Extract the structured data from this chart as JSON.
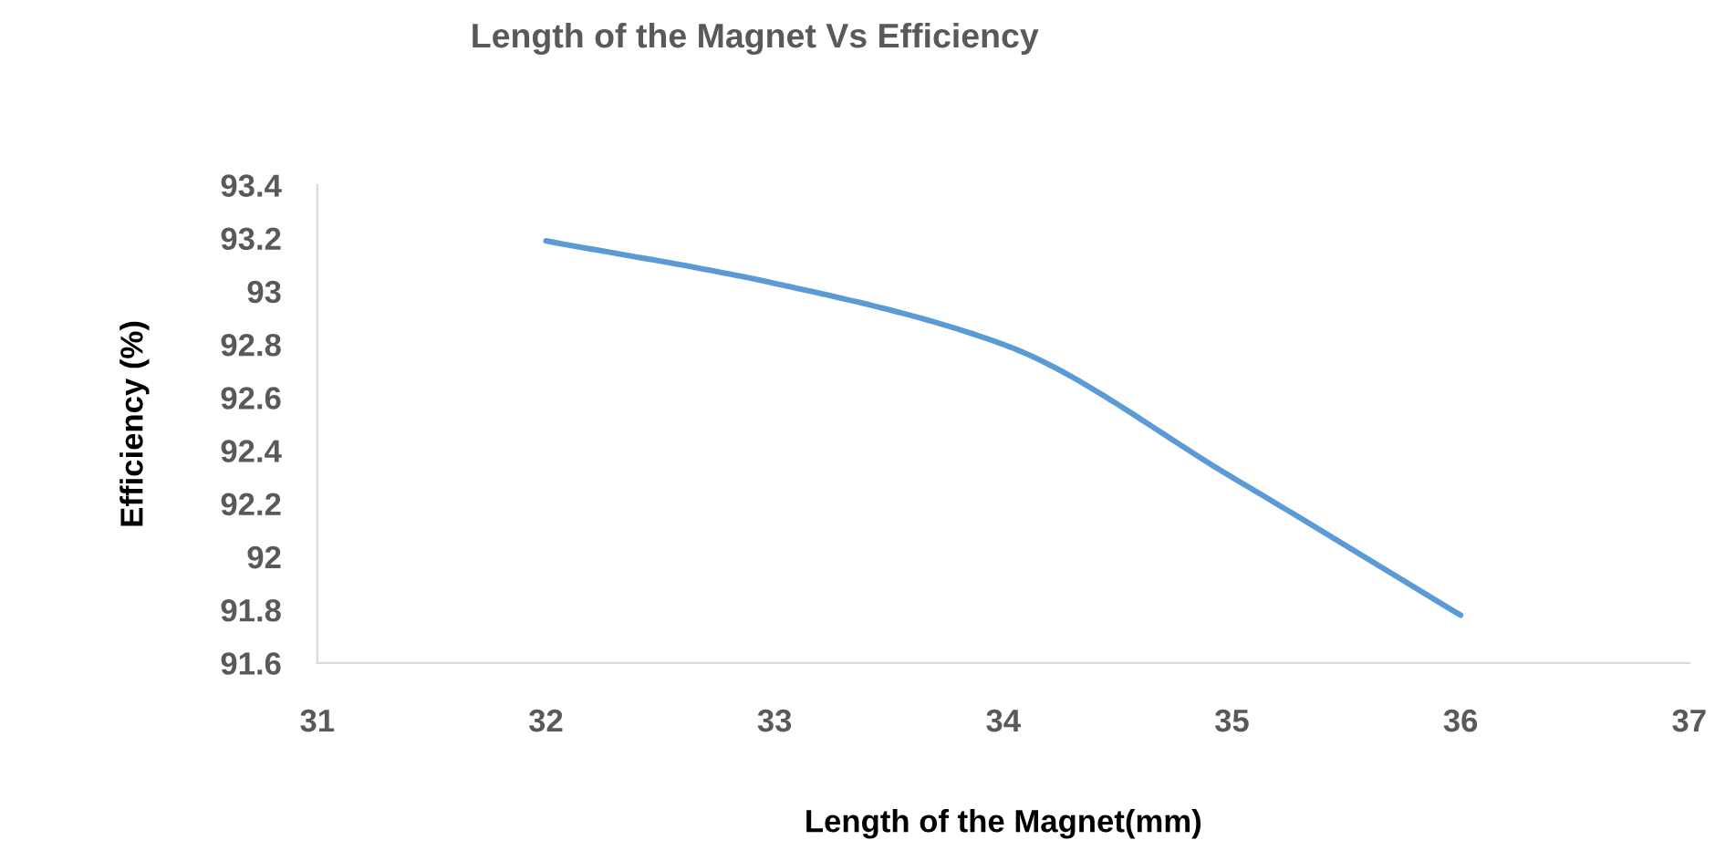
{
  "chart_data": {
    "type": "line",
    "title": "Length of the Magnet Vs Efficiency",
    "xlabel": "Length of the Magnet(mm)",
    "ylabel": "Efficiency (%)",
    "x": [
      32,
      33,
      34,
      35,
      36
    ],
    "series": [
      {
        "color": "#5b9bd5",
        "values": [
          93.19,
          93.03,
          92.8,
          92.3,
          91.78
        ]
      }
    ],
    "xlim": [
      31,
      37
    ],
    "xticks": [
      31,
      32,
      33,
      34,
      35,
      36,
      37
    ],
    "ylim": [
      91.6,
      93.4
    ],
    "yticks": [
      91.6,
      91.8,
      92,
      92.2,
      92.4,
      92.6,
      92.8,
      93,
      93.2,
      93.4
    ],
    "grid": false,
    "legend": false,
    "marker": "none",
    "line_style": "solid"
  }
}
